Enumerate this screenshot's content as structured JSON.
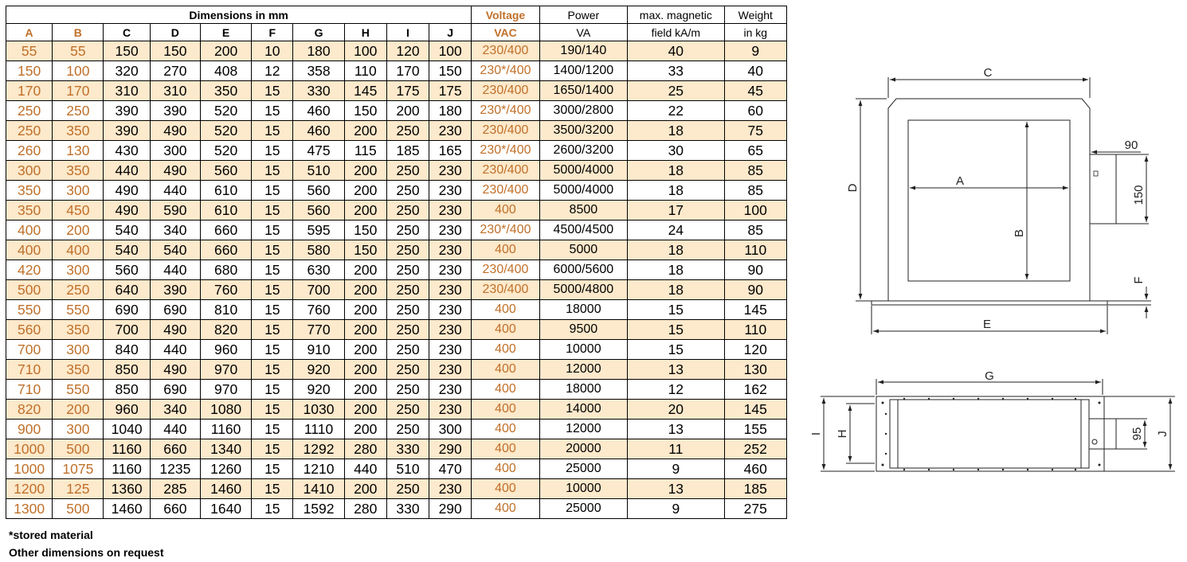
{
  "header": {
    "group_label": "Dimensions in mm",
    "voltage_label": "Voltage",
    "power_label": "Power",
    "field_label": "max. magnetic",
    "weight_label": "Weight",
    "columns": [
      "A",
      "B",
      "C",
      "D",
      "E",
      "F",
      "G",
      "H",
      "I",
      "J"
    ],
    "vac_label": "VAC",
    "va_label": "VA",
    "field_unit": "field kA/m",
    "weight_unit": "in kg"
  },
  "rows": [
    [
      "55",
      "55",
      "150",
      "150",
      "200",
      "10",
      "180",
      "100",
      "120",
      "100",
      "230/400",
      "190/140",
      "40",
      "9"
    ],
    [
      "150",
      "100",
      "320",
      "270",
      "408",
      "12",
      "358",
      "110",
      "170",
      "150",
      "230*/400",
      "1400/1200",
      "33",
      "40"
    ],
    [
      "170",
      "170",
      "310",
      "310",
      "350",
      "15",
      "330",
      "145",
      "175",
      "175",
      "230/400",
      "1650/1400",
      "25",
      "45"
    ],
    [
      "250",
      "250",
      "390",
      "390",
      "520",
      "15",
      "460",
      "150",
      "200",
      "180",
      "230*/400",
      "3000/2800",
      "22",
      "60"
    ],
    [
      "250",
      "350",
      "390",
      "490",
      "520",
      "15",
      "460",
      "200",
      "250",
      "230",
      "230/400",
      "3500/3200",
      "18",
      "75"
    ],
    [
      "260",
      "130",
      "430",
      "300",
      "520",
      "15",
      "475",
      "115",
      "185",
      "165",
      "230*/400",
      "2600/3200",
      "30",
      "65"
    ],
    [
      "300",
      "350",
      "440",
      "490",
      "560",
      "15",
      "510",
      "200",
      "250",
      "230",
      "230/400",
      "5000/4000",
      "18",
      "85"
    ],
    [
      "350",
      "300",
      "490",
      "440",
      "610",
      "15",
      "560",
      "200",
      "250",
      "230",
      "230/400",
      "5000/4000",
      "18",
      "85"
    ],
    [
      "350",
      "450",
      "490",
      "590",
      "610",
      "15",
      "560",
      "200",
      "250",
      "230",
      "400",
      "8500",
      "17",
      "100"
    ],
    [
      "400",
      "200",
      "540",
      "340",
      "660",
      "15",
      "595",
      "150",
      "250",
      "230",
      "230*/400",
      "4500/4500",
      "24",
      "85"
    ],
    [
      "400",
      "400",
      "540",
      "540",
      "660",
      "15",
      "580",
      "150",
      "250",
      "230",
      "400",
      "5000",
      "18",
      "110"
    ],
    [
      "420",
      "300",
      "560",
      "440",
      "680",
      "15",
      "630",
      "200",
      "250",
      "230",
      "230/400",
      "6000/5600",
      "18",
      "90"
    ],
    [
      "500",
      "250",
      "640",
      "390",
      "760",
      "15",
      "700",
      "200",
      "250",
      "230",
      "230/400",
      "5000/4800",
      "18",
      "90"
    ],
    [
      "550",
      "550",
      "690",
      "690",
      "810",
      "15",
      "760",
      "200",
      "250",
      "230",
      "400",
      "18000",
      "15",
      "145"
    ],
    [
      "560",
      "350",
      "700",
      "490",
      "820",
      "15",
      "770",
      "200",
      "250",
      "230",
      "400",
      "9500",
      "15",
      "110"
    ],
    [
      "700",
      "300",
      "840",
      "440",
      "960",
      "15",
      "910",
      "200",
      "250",
      "230",
      "400",
      "10000",
      "15",
      "120"
    ],
    [
      "710",
      "350",
      "850",
      "490",
      "970",
      "15",
      "920",
      "200",
      "250",
      "230",
      "400",
      "12000",
      "13",
      "130"
    ],
    [
      "710",
      "550",
      "850",
      "690",
      "970",
      "15",
      "920",
      "200",
      "250",
      "230",
      "400",
      "18000",
      "12",
      "162"
    ],
    [
      "820",
      "200",
      "960",
      "340",
      "1080",
      "15",
      "1030",
      "200",
      "250",
      "230",
      "400",
      "14000",
      "20",
      "145"
    ],
    [
      "900",
      "300",
      "1040",
      "440",
      "1160",
      "15",
      "1110",
      "200",
      "250",
      "300",
      "400",
      "12000",
      "13",
      "155"
    ],
    [
      "1000",
      "500",
      "1160",
      "660",
      "1340",
      "15",
      "1292",
      "280",
      "330",
      "290",
      "400",
      "20000",
      "11",
      "252"
    ],
    [
      "1000",
      "1075",
      "1160",
      "1235",
      "1260",
      "15",
      "1210",
      "440",
      "510",
      "470",
      "400",
      "25000",
      "9",
      "460"
    ],
    [
      "1200",
      "125",
      "1360",
      "285",
      "1460",
      "15",
      "1410",
      "200",
      "250",
      "230",
      "400",
      "10000",
      "13",
      "185"
    ],
    [
      "1300",
      "500",
      "1460",
      "660",
      "1640",
      "15",
      "1592",
      "280",
      "330",
      "290",
      "400",
      "25000",
      "9",
      "275"
    ]
  ],
  "notes": {
    "stored": "*stored material",
    "other": "Other dimensions on request"
  },
  "drawing_top": {
    "label_c": "C",
    "label_d": "D",
    "label_a": "A",
    "label_b": "B",
    "label_e": "E",
    "label_f": "F",
    "label_90": "90",
    "label_150": "150"
  },
  "drawing_bottom": {
    "label_g": "G",
    "label_i": "I",
    "label_h": "H",
    "label_95": "95",
    "label_j": "J"
  },
  "colors": {
    "accent": "#c0702a",
    "band": "#fde9cb"
  }
}
